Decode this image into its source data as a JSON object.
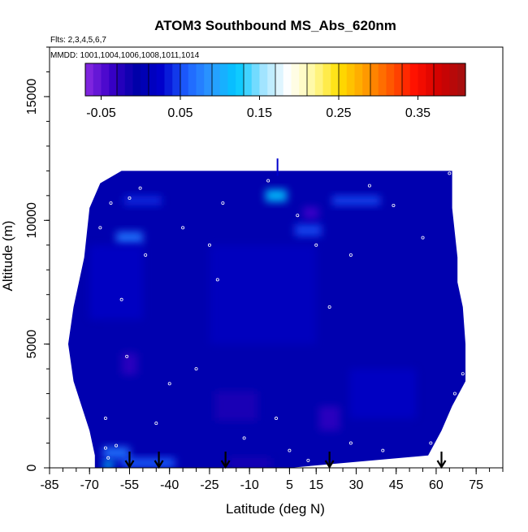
{
  "chart_data": {
    "type": "heatmap",
    "title": "ATOM3 Southbound MS_Abs_620nm",
    "subtitle_flights": "Flts: 2,3,4,5,6,7",
    "subtitle_dates": "MMDD: 1001,1004,1006,1008,1011,1014",
    "xlabel": "Latitude (deg N)",
    "ylabel": "Altitude (m)",
    "xlim": [
      -85,
      85
    ],
    "ylim": [
      0,
      17000
    ],
    "x_ticks": [
      -85,
      -70,
      -55,
      -40,
      -25,
      -10,
      5,
      15,
      30,
      45,
      60,
      75
    ],
    "y_ticks": [
      0,
      5000,
      10000,
      15000
    ],
    "colorbar": {
      "range": [
        -0.07,
        0.41
      ],
      "ticks": [
        -0.05,
        0.05,
        0.15,
        0.25,
        0.35
      ],
      "tick_labels": [
        "-0.05",
        "0.05",
        "0.15",
        "0.25",
        "0.35"
      ],
      "colors": [
        "#8a2be2",
        "#3c00c8",
        "#0000a8",
        "#0000cc",
        "#1e60ff",
        "#2b9bff",
        "#00c8ff",
        "#9fe3ff",
        "#ffffff",
        "#fff8a0",
        "#ffe000",
        "#ffa000",
        "#ff5a00",
        "#ff1000",
        "#d00000",
        "#a01010"
      ]
    },
    "background_value": 0.0,
    "envelope": [
      {
        "alt": 0,
        "lat_min": -68,
        "lat_max": 5
      },
      {
        "alt": 500,
        "lat_min": -68,
        "lat_max": 57
      },
      {
        "alt": 1500,
        "lat_min": -70,
        "lat_max": 62
      },
      {
        "alt": 2500,
        "lat_min": -73,
        "lat_max": 66
      },
      {
        "alt": 3500,
        "lat_min": -76,
        "lat_max": 71
      },
      {
        "alt": 5000,
        "lat_min": -78,
        "lat_max": 71
      },
      {
        "alt": 6500,
        "lat_min": -76,
        "lat_max": 70
      },
      {
        "alt": 7500,
        "lat_min": -74,
        "lat_max": 68
      },
      {
        "alt": 8500,
        "lat_min": -72,
        "lat_max": 68
      },
      {
        "alt": 9500,
        "lat_min": -71,
        "lat_max": 67
      },
      {
        "alt": 10500,
        "lat_min": -70,
        "lat_max": 66
      },
      {
        "alt": 11500,
        "lat_min": -66,
        "lat_max": 66
      },
      {
        "alt": 12000,
        "lat_min": -58,
        "lat_max": 66
      }
    ],
    "patches": [
      {
        "lat": -60,
        "alt": 600,
        "w": 10,
        "h": 500,
        "value": 0.07
      },
      {
        "lat": -48,
        "alt": 200,
        "w": 20,
        "h": 400,
        "value": 0.06
      },
      {
        "lat": -63,
        "alt": 100,
        "w": 4,
        "h": 300,
        "value": 0.12
      },
      {
        "lat": -55,
        "alt": 9300,
        "w": 10,
        "h": 500,
        "value": 0.07
      },
      {
        "lat": -50,
        "alt": 10800,
        "w": 14,
        "h": 400,
        "value": 0.04
      },
      {
        "lat": 0,
        "alt": 11000,
        "w": 8,
        "h": 500,
        "value": 0.12
      },
      {
        "lat": 30,
        "alt": 10800,
        "w": 18,
        "h": 400,
        "value": 0.05
      },
      {
        "lat": 12,
        "alt": 9600,
        "w": 10,
        "h": 500,
        "value": 0.05
      },
      {
        "lat": 13,
        "alt": 10300,
        "w": 6,
        "h": 500,
        "value": -0.04
      },
      {
        "lat": -55,
        "alt": 4200,
        "w": 6,
        "h": 900,
        "value": -0.03
      },
      {
        "lat": -15,
        "alt": 2500,
        "w": 16,
        "h": 1200,
        "value": -0.02
      },
      {
        "lat": 20,
        "alt": 2000,
        "w": 8,
        "h": 1000,
        "value": -0.03
      },
      {
        "lat": -10,
        "alt": 200,
        "w": 16,
        "h": 400,
        "value": -0.02
      },
      {
        "lat": 40,
        "alt": 3000,
        "w": 25,
        "h": 2000,
        "value": 0.02
      },
      {
        "lat": -5,
        "alt": 7000,
        "w": 40,
        "h": 4000,
        "value": 0.015
      },
      {
        "lat": -60,
        "alt": 7500,
        "w": 20,
        "h": 3000,
        "value": 0.02
      }
    ],
    "aircraft_column": {
      "lat": 0.5,
      "alt_min": 11800,
      "alt_max": 12500
    },
    "sample_points": [
      {
        "lat": -63,
        "alt": 400
      },
      {
        "lat": -64,
        "alt": 800
      },
      {
        "lat": -60,
        "alt": 900
      },
      {
        "lat": -56,
        "alt": 4500
      },
      {
        "lat": -58,
        "alt": 6800
      },
      {
        "lat": -64,
        "alt": 2000
      },
      {
        "lat": -66,
        "alt": 9700
      },
      {
        "lat": -62,
        "alt": 10700
      },
      {
        "lat": -55,
        "alt": 10900
      },
      {
        "lat": -51,
        "alt": 11300
      },
      {
        "lat": -49,
        "alt": 8600
      },
      {
        "lat": -35,
        "alt": 9700
      },
      {
        "lat": -20,
        "alt": 10700
      },
      {
        "lat": -3,
        "alt": 11600
      },
      {
        "lat": 8,
        "alt": 10200
      },
      {
        "lat": 15,
        "alt": 9000
      },
      {
        "lat": 28,
        "alt": 8600
      },
      {
        "lat": 44,
        "alt": 10600
      },
      {
        "lat": 55,
        "alt": 9300
      },
      {
        "lat": 65,
        "alt": 11900
      },
      {
        "lat": 70,
        "alt": 3800
      },
      {
        "lat": -22,
        "alt": 7600
      },
      {
        "lat": -45,
        "alt": 1800
      },
      {
        "lat": -12,
        "alt": 1200
      },
      {
        "lat": 0,
        "alt": 2000
      },
      {
        "lat": 5,
        "alt": 700
      },
      {
        "lat": 28,
        "alt": 1000
      },
      {
        "lat": 40,
        "alt": 700
      },
      {
        "lat": 58,
        "alt": 1000
      },
      {
        "lat": 67,
        "alt": 3000
      },
      {
        "lat": -30,
        "alt": 4000
      },
      {
        "lat": 20,
        "alt": 6500
      },
      {
        "lat": -40,
        "alt": 3400
      },
      {
        "lat": 12,
        "alt": 300
      },
      {
        "lat": -25,
        "alt": 9000
      },
      {
        "lat": 35,
        "alt": 11400
      }
    ],
    "flight_arrows_lat": [
      -55,
      -44,
      -19,
      20,
      62
    ],
    "grid": false
  }
}
